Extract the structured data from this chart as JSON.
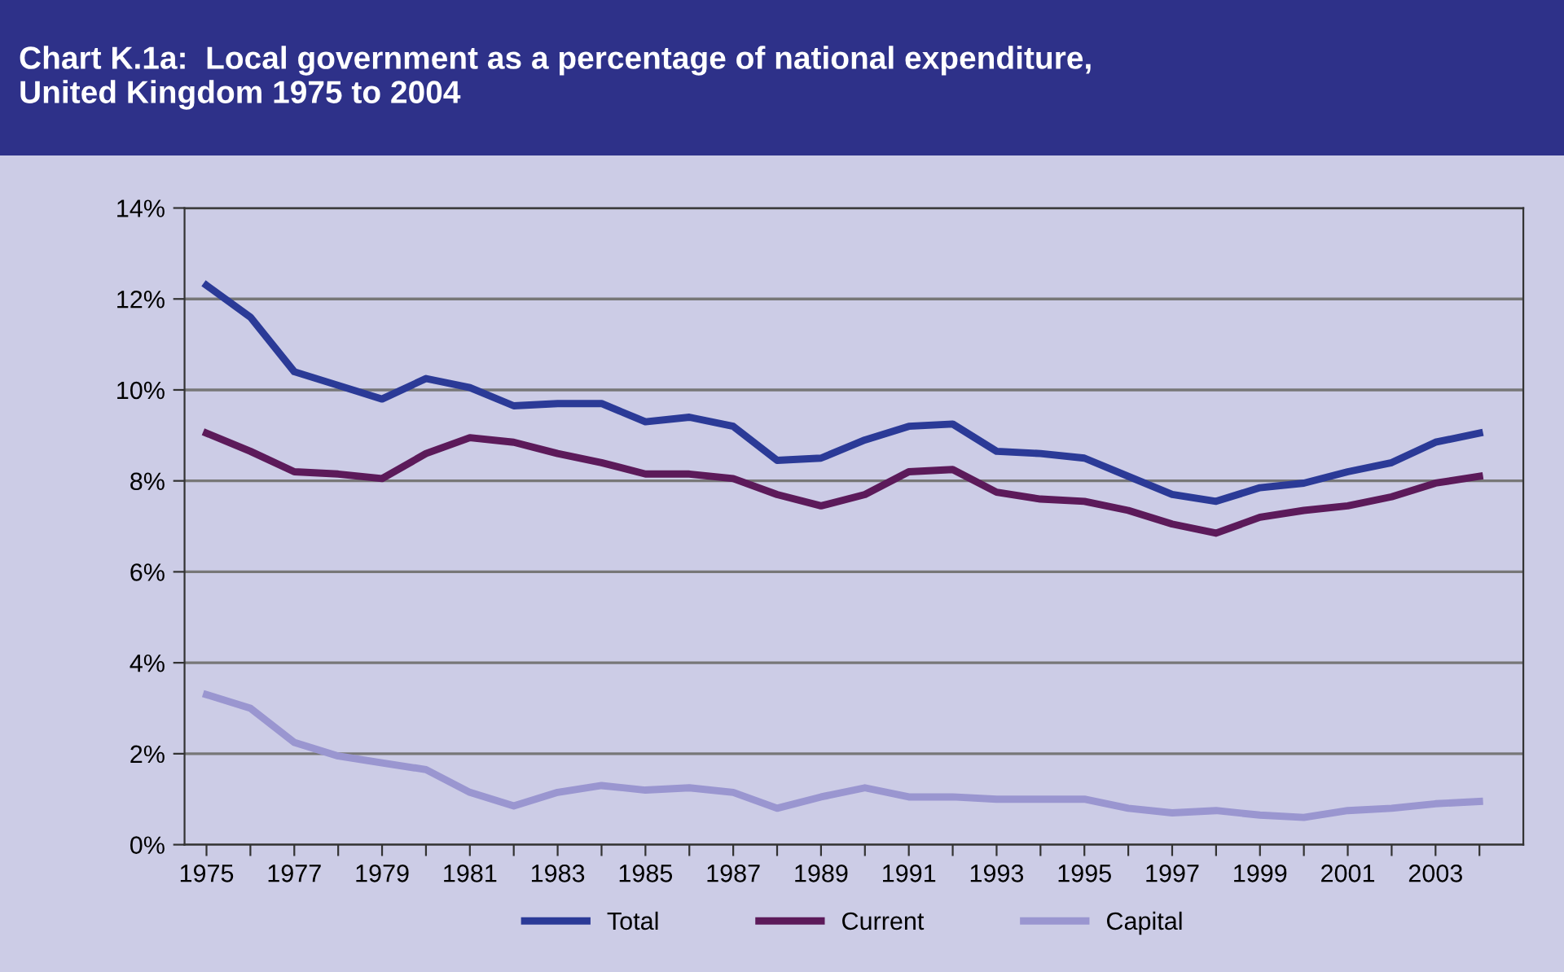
{
  "chart_data": {
    "type": "line",
    "title": "Chart K.1a:  Local government as a percentage of national expenditure,\nUnited Kingdom 1975 to 2004",
    "x": [
      1975,
      1976,
      1977,
      1978,
      1979,
      1980,
      1981,
      1982,
      1983,
      1984,
      1985,
      1986,
      1987,
      1988,
      1989,
      1990,
      1991,
      1992,
      1993,
      1994,
      1995,
      1996,
      1997,
      1998,
      1999,
      2000,
      2001,
      2002,
      2003,
      2004
    ],
    "series": [
      {
        "name": "Total",
        "color": "#2b3a97",
        "values": [
          12.3,
          11.6,
          10.4,
          10.1,
          9.8,
          10.25,
          10.05,
          9.65,
          9.7,
          9.7,
          9.3,
          9.4,
          9.2,
          8.45,
          8.5,
          8.9,
          9.2,
          9.25,
          8.65,
          8.6,
          8.5,
          8.1,
          7.7,
          7.55,
          7.85,
          7.95,
          8.2,
          8.4,
          8.85,
          9.05
        ]
      },
      {
        "name": "Current",
        "color": "#5c1a5a",
        "values": [
          9.05,
          8.65,
          8.2,
          8.15,
          8.05,
          8.6,
          8.95,
          8.85,
          8.6,
          8.4,
          8.15,
          8.15,
          8.05,
          7.7,
          7.45,
          7.7,
          8.2,
          8.25,
          7.75,
          7.6,
          7.55,
          7.35,
          7.05,
          6.85,
          7.2,
          7.35,
          7.45,
          7.65,
          7.95,
          8.1
        ]
      },
      {
        "name": "Capital",
        "color": "#9a96d0",
        "values": [
          3.3,
          3.0,
          2.25,
          1.95,
          1.8,
          1.65,
          1.15,
          0.85,
          1.15,
          1.3,
          1.2,
          1.25,
          1.15,
          0.8,
          1.05,
          1.25,
          1.05,
          1.05,
          1.0,
          1.0,
          1.0,
          0.8,
          0.7,
          0.75,
          0.65,
          0.6,
          0.75,
          0.8,
          0.9,
          0.95
        ]
      }
    ],
    "xlim": [
      1974.5,
      2005
    ],
    "xticks": [
      {
        "value": 1975,
        "label": "1975"
      },
      {
        "value": 1976,
        "label": null
      },
      {
        "value": 1977,
        "label": "1977"
      },
      {
        "value": 1978,
        "label": null
      },
      {
        "value": 1979,
        "label": "1979"
      },
      {
        "value": 1980,
        "label": null
      },
      {
        "value": 1981,
        "label": "1981"
      },
      {
        "value": 1982,
        "label": null
      },
      {
        "value": 1983,
        "label": "1983"
      },
      {
        "value": 1984,
        "label": null
      },
      {
        "value": 1985,
        "label": "1985"
      },
      {
        "value": 1986,
        "label": null
      },
      {
        "value": 1987,
        "label": "1987"
      },
      {
        "value": 1988,
        "label": null
      },
      {
        "value": 1989,
        "label": "1989"
      },
      {
        "value": 1990,
        "label": null
      },
      {
        "value": 1991,
        "label": "1991"
      },
      {
        "value": 1992,
        "label": null
      },
      {
        "value": 1993,
        "label": "1993"
      },
      {
        "value": 1994,
        "label": null
      },
      {
        "value": 1995,
        "label": "1995"
      },
      {
        "value": 1996,
        "label": null
      },
      {
        "value": 1997,
        "label": "1997"
      },
      {
        "value": 1998,
        "label": null
      },
      {
        "value": 1999,
        "label": "1999"
      },
      {
        "value": 2000,
        "label": null
      },
      {
        "value": 2001,
        "label": "2001"
      },
      {
        "value": 2002,
        "label": null
      },
      {
        "value": 2003,
        "label": "2003"
      },
      {
        "value": 2004,
        "label": null
      }
    ],
    "ylim": [
      0,
      14
    ],
    "yticks": [
      {
        "value": 0,
        "label": "0%"
      },
      {
        "value": 2,
        "label": "2%"
      },
      {
        "value": 4,
        "label": "4%"
      },
      {
        "value": 6,
        "label": "6%"
      },
      {
        "value": 8,
        "label": "8%"
      },
      {
        "value": 10,
        "label": "10%"
      },
      {
        "value": 12,
        "label": "12%"
      },
      {
        "value": 14,
        "label": "14%"
      }
    ],
    "grid": "y",
    "legend": "bottom",
    "marker": "none",
    "line_style": "solid"
  }
}
